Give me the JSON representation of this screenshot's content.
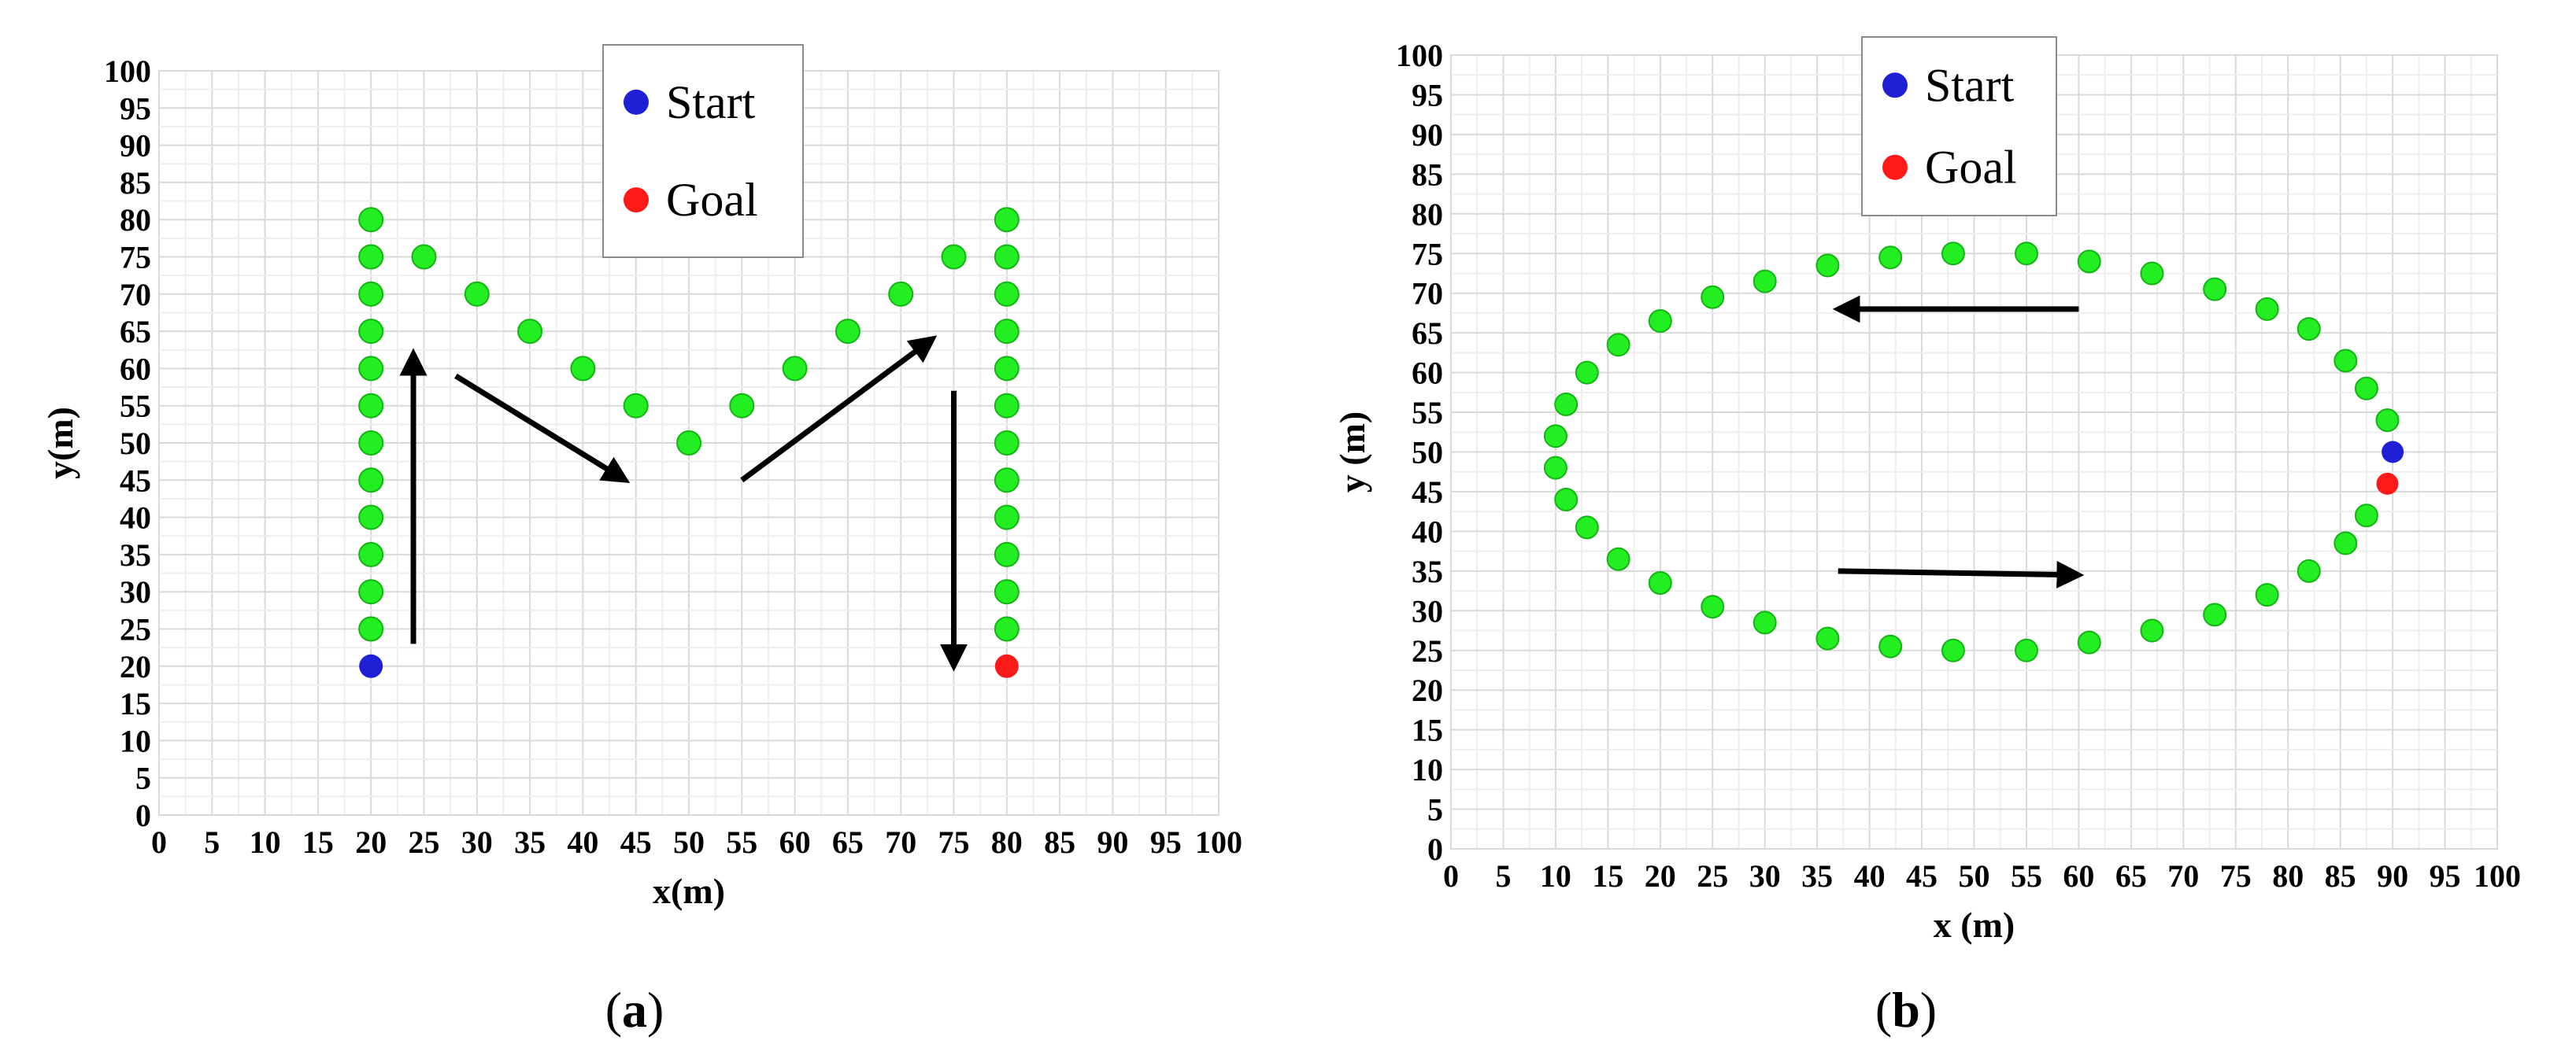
{
  "chart_data": [
    {
      "type": "scatter",
      "title": "",
      "xlabel": "x(m)",
      "ylabel": "y(m)",
      "xlim": [
        0,
        100
      ],
      "ylim": [
        0,
        100
      ],
      "xticks": [
        "0",
        "5",
        "10",
        "15",
        "20",
        "25",
        "30",
        "35",
        "40",
        "45",
        "50",
        "55",
        "60",
        "65",
        "70",
        "75",
        "80",
        "85",
        "90",
        "95",
        "100"
      ],
      "yticks": [
        "0",
        "5",
        "10",
        "15",
        "20",
        "25",
        "30",
        "35",
        "40",
        "45",
        "50",
        "55",
        "60",
        "65",
        "70",
        "75",
        "80",
        "85",
        "90",
        "95",
        "100"
      ],
      "grid": true,
      "legend": {
        "position": "top-center",
        "entries": [
          {
            "label": "Start",
            "color": "#1f1fd6"
          },
          {
            "label": "Goal",
            "color": "#ff1a1a"
          }
        ]
      },
      "series": [
        {
          "name": "Start",
          "color": "#1f1fd6",
          "points": [
            [
              20,
              20
            ]
          ]
        },
        {
          "name": "Goal",
          "color": "#ff1a1a",
          "points": [
            [
              80,
              20
            ]
          ]
        },
        {
          "color": "#22ee22",
          "points": [
            [
              20,
              25
            ],
            [
              20,
              30
            ],
            [
              20,
              35
            ],
            [
              20,
              40
            ],
            [
              20,
              45
            ],
            [
              20,
              50
            ],
            [
              20,
              55
            ],
            [
              20,
              60
            ],
            [
              20,
              65
            ],
            [
              20,
              70
            ],
            [
              20,
              75
            ],
            [
              20,
              80
            ],
            [
              25,
              75
            ],
            [
              30,
              70
            ],
            [
              35,
              65
            ],
            [
              40,
              60
            ],
            [
              45,
              55
            ],
            [
              50,
              50
            ],
            [
              55,
              55
            ],
            [
              60,
              60
            ],
            [
              65,
              65
            ],
            [
              70,
              70
            ],
            [
              75,
              75
            ],
            [
              80,
              80
            ],
            [
              80,
              75
            ],
            [
              80,
              70
            ],
            [
              80,
              65
            ],
            [
              80,
              60
            ],
            [
              80,
              55
            ],
            [
              80,
              50
            ],
            [
              80,
              45
            ],
            [
              80,
              40
            ],
            [
              80,
              35
            ],
            [
              80,
              30
            ],
            [
              80,
              25
            ]
          ]
        }
      ],
      "arrows": [
        [
          [
            24,
            23
          ],
          [
            24,
            62
          ]
        ],
        [
          [
            28,
            59
          ],
          [
            44,
            45
          ]
        ],
        [
          [
            55,
            45
          ],
          [
            73,
            64
          ]
        ],
        [
          [
            75,
            57
          ],
          [
            75,
            20
          ]
        ]
      ],
      "caption_letter": "a"
    },
    {
      "type": "scatter",
      "title": "",
      "xlabel": "x (m)",
      "ylabel": "y (m)",
      "xlim": [
        0,
        100
      ],
      "ylim": [
        0,
        100
      ],
      "xticks": [
        "0",
        "5",
        "10",
        "15",
        "20",
        "25",
        "30",
        "35",
        "40",
        "45",
        "50",
        "55",
        "60",
        "65",
        "70",
        "75",
        "80",
        "85",
        "90",
        "95",
        "100"
      ],
      "yticks": [
        "0",
        "5",
        "10",
        "15",
        "20",
        "25",
        "30",
        "35",
        "40",
        "45",
        "50",
        "55",
        "60",
        "65",
        "70",
        "75",
        "80",
        "85",
        "90",
        "95",
        "100"
      ],
      "grid": true,
      "legend": {
        "position": "top-center",
        "entries": [
          {
            "label": "Start",
            "color": "#1f1fd6"
          },
          {
            "label": "Goal",
            "color": "#ff1a1a"
          }
        ]
      },
      "series": [
        {
          "name": "Start",
          "color": "#1f1fd6",
          "points": [
            [
              90,
              50
            ]
          ]
        },
        {
          "name": "Goal",
          "color": "#ff1a1a",
          "points": [
            [
              89.5,
              46
            ]
          ]
        },
        {
          "color": "#22ee22",
          "points": [
            [
              10,
              52
            ],
            [
              11,
              56
            ],
            [
              13,
              60
            ],
            [
              16,
              63.5
            ],
            [
              20,
              66.5
            ],
            [
              25,
              69.5
            ],
            [
              30,
              71.5
            ],
            [
              36,
              73.5
            ],
            [
              42,
              74.5
            ],
            [
              48,
              75
            ],
            [
              55,
              75
            ],
            [
              61,
              74
            ],
            [
              67,
              72.5
            ],
            [
              73,
              70.5
            ],
            [
              78,
              68
            ],
            [
              82,
              65.5
            ],
            [
              85.5,
              61.5
            ],
            [
              87.5,
              58
            ],
            [
              89.5,
              54
            ],
            [
              10,
              48
            ],
            [
              11,
              44
            ],
            [
              13,
              40.5
            ],
            [
              16,
              36.5
            ],
            [
              20,
              33.5
            ],
            [
              25,
              30.5
            ],
            [
              30,
              28.5
            ],
            [
              36,
              26.5
            ],
            [
              42,
              25.5
            ],
            [
              48,
              25
            ],
            [
              55,
              25
            ],
            [
              61,
              26
            ],
            [
              67,
              27.5
            ],
            [
              73,
              29.5
            ],
            [
              78,
              32
            ],
            [
              82,
              35
            ],
            [
              85.5,
              38.5
            ],
            [
              87.5,
              42
            ]
          ]
        }
      ],
      "arrows": [
        [
          [
            60,
            68
          ],
          [
            37,
            68
          ]
        ],
        [
          [
            37,
            35
          ],
          [
            60,
            34.5
          ]
        ]
      ],
      "caption_letter": "b"
    }
  ]
}
